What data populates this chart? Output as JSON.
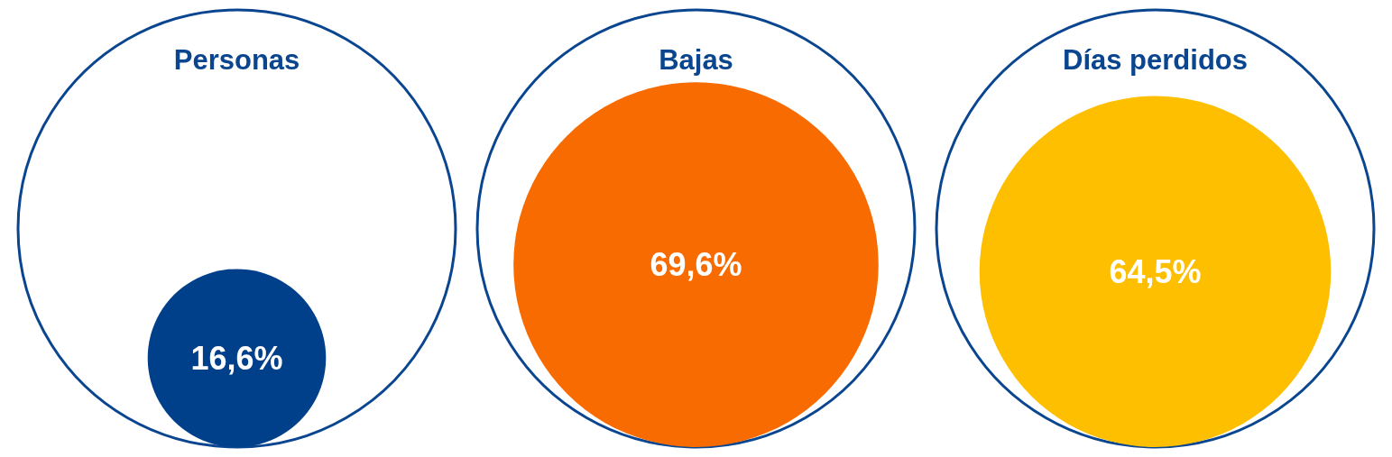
{
  "chart_data": {
    "type": "other",
    "categories": [
      "Personas",
      "Bajas",
      "Días perdidos"
    ],
    "values": [
      16.6,
      69.6,
      64.5
    ],
    "value_labels": [
      "16,6%",
      "69,6%",
      "64,5%"
    ],
    "colors": [
      "#003f8a",
      "#f76b00",
      "#fdbf00"
    ]
  }
}
